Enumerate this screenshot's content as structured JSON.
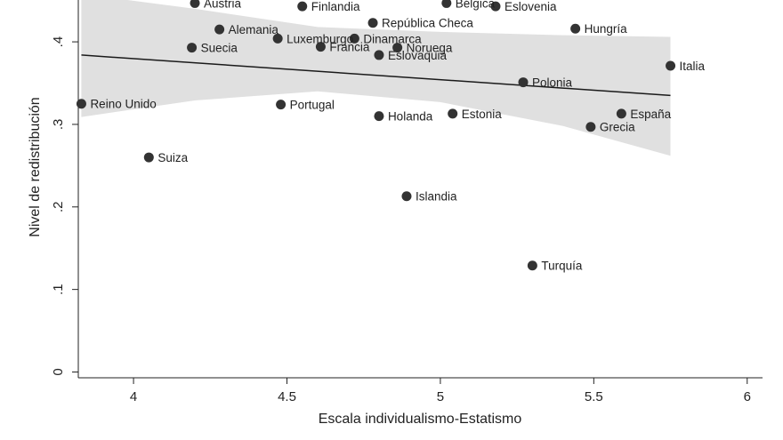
{
  "chart_data": {
    "type": "scatter",
    "title": "",
    "xlabel": "Escala individualismo-Estatismo",
    "ylabel": "Nivel de redistribución",
    "xlim": [
      3.82,
      6.05
    ],
    "ylim": [
      -0.007,
      0.455
    ],
    "x_ticks": [
      4,
      4.5,
      5,
      5.5,
      6
    ],
    "x_tick_labels": [
      "4",
      "4.5",
      "5",
      "5.5",
      "6"
    ],
    "y_ticks": [
      0,
      0.1,
      0.2,
      0.3,
      0.4
    ],
    "y_tick_labels": [
      "0",
      ".1",
      ".2",
      ".3",
      ".4"
    ],
    "grid": false,
    "points": [
      {
        "label": "Austria",
        "x": 4.2,
        "y": 0.447
      },
      {
        "label": "Finlandia",
        "x": 4.55,
        "y": 0.443
      },
      {
        "label": "Bélgica",
        "x": 5.02,
        "y": 0.447
      },
      {
        "label": "Eslovenia",
        "x": 5.18,
        "y": 0.443
      },
      {
        "label": "República Checa",
        "x": 4.78,
        "y": 0.423
      },
      {
        "label": "Alemania",
        "x": 4.28,
        "y": 0.415
      },
      {
        "label": "Hungría",
        "x": 5.44,
        "y": 0.416
      },
      {
        "label": "Luxemburgo",
        "x": 4.47,
        "y": 0.404
      },
      {
        "label": "Dinamarca",
        "x": 4.72,
        "y": 0.404
      },
      {
        "label": "Suecia",
        "x": 4.19,
        "y": 0.393
      },
      {
        "label": "Francia",
        "x": 4.61,
        "y": 0.394
      },
      {
        "label": "Noruega",
        "x": 4.86,
        "y": 0.393
      },
      {
        "label": "Eslovaquia",
        "x": 4.8,
        "y": 0.384
      },
      {
        "label": "Italia",
        "x": 5.75,
        "y": 0.371
      },
      {
        "label": "Polonia",
        "x": 5.27,
        "y": 0.351
      },
      {
        "label": "Reino Unido",
        "x": 3.83,
        "y": 0.325
      },
      {
        "label": "Portugal",
        "x": 4.48,
        "y": 0.324
      },
      {
        "label": "Holanda",
        "x": 4.8,
        "y": 0.31
      },
      {
        "label": "Estonia",
        "x": 5.04,
        "y": 0.313
      },
      {
        "label": "España",
        "x": 5.59,
        "y": 0.313
      },
      {
        "label": "Grecia",
        "x": 5.49,
        "y": 0.297
      },
      {
        "label": "Suiza",
        "x": 4.05,
        "y": 0.26
      },
      {
        "label": "Islandia",
        "x": 4.89,
        "y": 0.213
      },
      {
        "label": "Turquía",
        "x": 5.3,
        "y": 0.129
      }
    ],
    "fit_line": {
      "x0": 3.83,
      "y0": 0.384,
      "x1": 5.75,
      "y1": 0.335
    },
    "confidence_band": {
      "x": [
        3.83,
        4.2,
        4.6,
        5.0,
        5.4,
        5.75
      ],
      "upper": [
        0.458,
        0.44,
        0.418,
        0.412,
        0.408,
        0.406
      ],
      "lower": [
        0.309,
        0.329,
        0.34,
        0.327,
        0.298,
        0.262
      ]
    },
    "colors": {
      "points": "#333333",
      "fit_line": "#1a1a1a",
      "band": "#e0e0e0",
      "axis": "#222222"
    }
  }
}
